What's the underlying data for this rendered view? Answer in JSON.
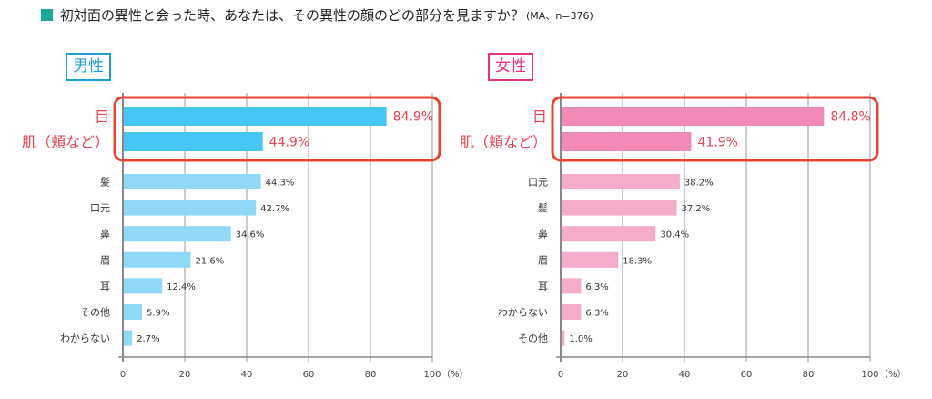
{
  "title": {
    "text": "初対面の異性と会った時、あなたは、その異性の顔のどの部分を見ますか？",
    "note": "(MA、n=376)",
    "accent_color": "#1aa89a"
  },
  "chart_data": [
    {
      "type": "bar",
      "orientation": "horizontal",
      "group_label": "男性",
      "title": "男性",
      "categories": [
        "目",
        "肌（頬など）",
        "髪",
        "口元",
        "鼻",
        "眉",
        "耳",
        "その他",
        "わからない"
      ],
      "values": [
        84.9,
        44.9,
        44.3,
        42.7,
        34.6,
        21.6,
        12.4,
        5.9,
        2.7
      ],
      "value_labels": [
        "84.9%",
        "44.9%",
        "44.3%",
        "42.7%",
        "34.6%",
        "21.6%",
        "12.4%",
        "5.9%",
        "2.7%"
      ],
      "highlighted_count": 2,
      "xlim": [
        0,
        100
      ],
      "xticks": [
        "0",
        "20",
        "40",
        "60",
        "80",
        "100"
      ],
      "xunit": "（%）",
      "grid": true,
      "colors": {
        "highlight": "#46c6f2",
        "normal": "#8fd9f7",
        "label_border": "#1a9fd6"
      }
    },
    {
      "type": "bar",
      "orientation": "horizontal",
      "group_label": "女性",
      "title": "女性",
      "categories": [
        "目",
        "肌（頬など）",
        "口元",
        "髪",
        "鼻",
        "眉",
        "耳",
        "わからない",
        "その他"
      ],
      "values": [
        84.8,
        41.9,
        38.2,
        37.2,
        30.4,
        18.3,
        6.3,
        6.3,
        1.0
      ],
      "value_labels": [
        "84.8%",
        "41.9%",
        "38.2%",
        "37.2%",
        "30.4%",
        "18.3%",
        "6.3%",
        "6.3%",
        "1.0%"
      ],
      "highlighted_count": 2,
      "xlim": [
        0,
        100
      ],
      "xticks": [
        "0",
        "20",
        "40",
        "60",
        "80",
        "100"
      ],
      "xunit": "（%）",
      "grid": true,
      "colors": {
        "highlight": "#f28ab9",
        "normal": "#f5abca",
        "label_border": "#e8357f"
      }
    }
  ],
  "highlight_color": "#e8432f",
  "highlight_text_color": "#e8424f"
}
